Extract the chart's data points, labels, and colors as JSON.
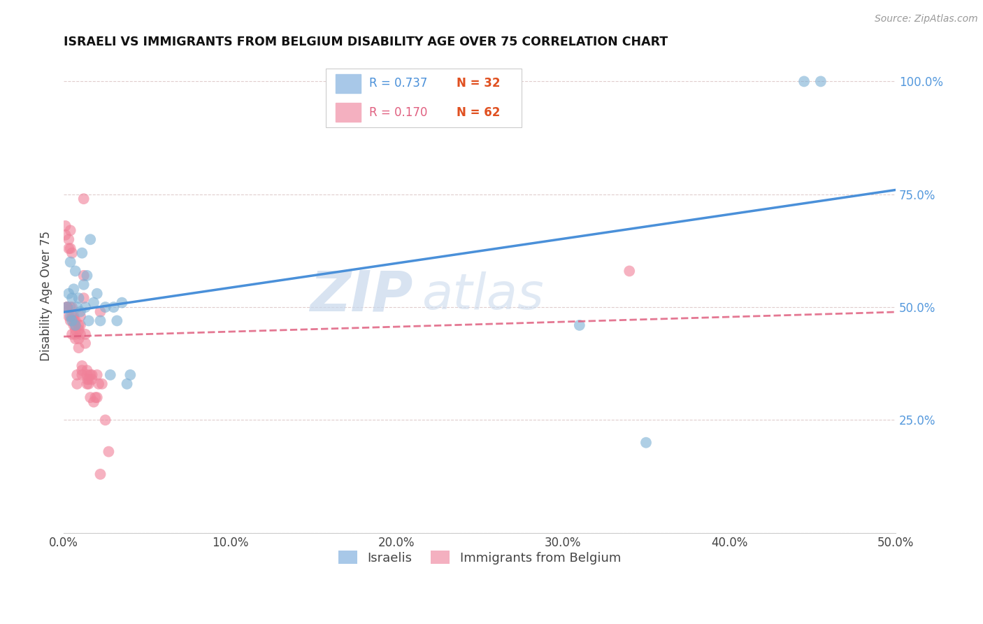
{
  "title": "ISRAELI VS IMMIGRANTS FROM BELGIUM DISABILITY AGE OVER 75 CORRELATION CHART",
  "source": "Source: ZipAtlas.com",
  "ylabel": "Disability Age Over 75",
  "israeli_color": "#7bafd4",
  "belgium_color": "#f08098",
  "trend_israeli_color": "#4a90d9",
  "trend_belgium_color": "#e06080",
  "watermark_zip": "ZIP",
  "watermark_atlas": "atlas",
  "xlim": [
    0.0,
    0.5
  ],
  "ylim": [
    0.0,
    1.05
  ],
  "israelis_x": [
    0.002,
    0.003,
    0.004,
    0.004,
    0.005,
    0.005,
    0.006,
    0.007,
    0.007,
    0.008,
    0.009,
    0.01,
    0.011,
    0.012,
    0.013,
    0.014,
    0.015,
    0.016,
    0.018,
    0.02,
    0.022,
    0.025,
    0.028,
    0.03,
    0.032,
    0.035,
    0.038,
    0.04,
    0.31,
    0.35,
    0.445,
    0.455
  ],
  "israelis_y": [
    0.5,
    0.53,
    0.48,
    0.6,
    0.52,
    0.47,
    0.54,
    0.58,
    0.46,
    0.5,
    0.52,
    0.49,
    0.62,
    0.55,
    0.5,
    0.57,
    0.47,
    0.65,
    0.51,
    0.53,
    0.47,
    0.5,
    0.35,
    0.5,
    0.47,
    0.51,
    0.33,
    0.35,
    0.46,
    0.2,
    1.0,
    1.0
  ],
  "belgium_x": [
    0.001,
    0.001,
    0.002,
    0.002,
    0.002,
    0.003,
    0.003,
    0.003,
    0.004,
    0.004,
    0.004,
    0.004,
    0.005,
    0.005,
    0.005,
    0.005,
    0.006,
    0.006,
    0.006,
    0.007,
    0.007,
    0.007,
    0.007,
    0.007,
    0.008,
    0.008,
    0.009,
    0.009,
    0.009,
    0.009,
    0.01,
    0.01,
    0.01,
    0.011,
    0.011,
    0.011,
    0.012,
    0.012,
    0.012,
    0.013,
    0.013,
    0.014,
    0.014,
    0.014,
    0.014,
    0.015,
    0.015,
    0.016,
    0.016,
    0.017,
    0.017,
    0.018,
    0.019,
    0.02,
    0.02,
    0.021,
    0.022,
    0.022,
    0.023,
    0.025,
    0.027,
    0.34
  ],
  "belgium_y": [
    0.68,
    0.66,
    0.5,
    0.5,
    0.5,
    0.63,
    0.65,
    0.48,
    0.63,
    0.47,
    0.67,
    0.5,
    0.62,
    0.48,
    0.44,
    0.5,
    0.47,
    0.46,
    0.48,
    0.47,
    0.45,
    0.43,
    0.46,
    0.44,
    0.35,
    0.33,
    0.45,
    0.46,
    0.43,
    0.41,
    0.46,
    0.48,
    0.44,
    0.36,
    0.35,
    0.37,
    0.74,
    0.52,
    0.57,
    0.44,
    0.42,
    0.34,
    0.33,
    0.35,
    0.36,
    0.33,
    0.34,
    0.35,
    0.3,
    0.34,
    0.35,
    0.29,
    0.3,
    0.3,
    0.35,
    0.33,
    0.13,
    0.49,
    0.33,
    0.25,
    0.18,
    0.58
  ],
  "background_color": "#ffffff",
  "grid_color": "#ddc8c8",
  "right_axis_color": "#5599dd",
  "legend_R1": "R = 0.737",
  "legend_N1": "N = 32",
  "legend_R2": "R = 0.170",
  "legend_N2": "N = 62",
  "legend_color_R1": "#4a90d9",
  "legend_color_R2": "#e06080",
  "legend_color_N": "#e05020",
  "bottom_legend_israelis": "Israelis",
  "bottom_legend_belgium": "Immigrants from Belgium"
}
